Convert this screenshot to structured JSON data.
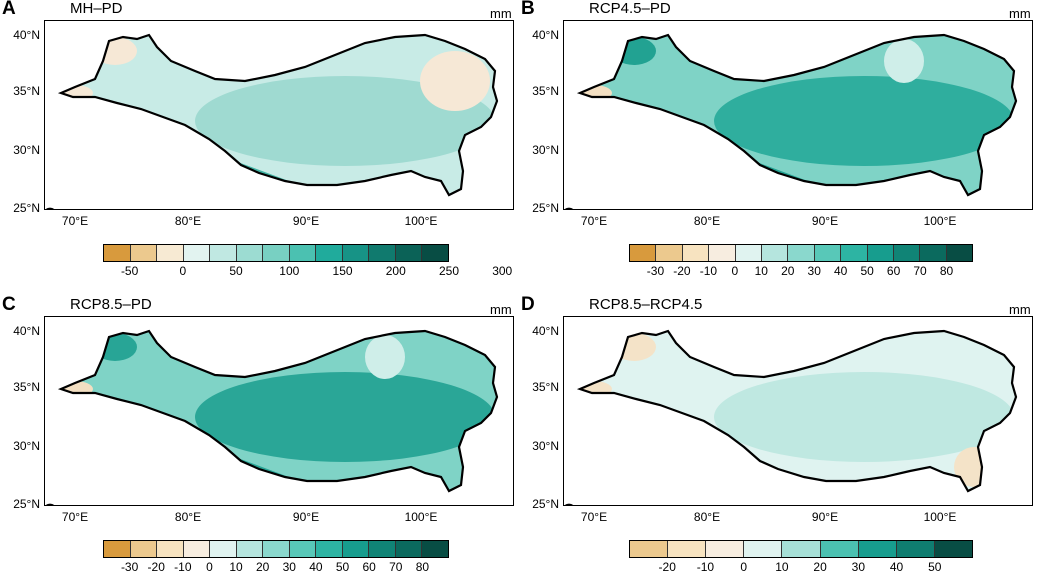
{
  "unit": "mm",
  "lat_labels": [
    "40°N",
    "35°N",
    "30°N",
    "25°N"
  ],
  "lon_labels": [
    "70°E",
    "80°E",
    "90°E",
    "100°E"
  ],
  "panels": [
    {
      "label": "A",
      "title": "MH–PD",
      "unit": "mm",
      "colorbar": {
        "ticks": [
          "-50",
          "0",
          "50",
          "100",
          "150",
          "200",
          "250",
          "300"
        ],
        "colors": [
          "#d89a3d",
          "#ecc98e",
          "#f7ead3",
          "#e2f3f0",
          "#c0e8e2",
          "#9cdcd2",
          "#78d0c2",
          "#4bc1b1",
          "#20ab9c",
          "#179386",
          "#107a6e",
          "#0b6257",
          "#084d44"
        ]
      }
    },
    {
      "label": "B",
      "title": "RCP4.5–PD",
      "unit": "mm",
      "colorbar": {
        "ticks": [
          "-30",
          "-20",
          "-10",
          "0",
          "10",
          "20",
          "30",
          "40",
          "50",
          "60",
          "70",
          "80"
        ],
        "colors": [
          "#d89a3d",
          "#ecc98e",
          "#f7e3c0",
          "#f7ede0",
          "#e0f3f0",
          "#b5e5de",
          "#8ad8cd",
          "#58c8b8",
          "#2db4a3",
          "#179d8e",
          "#108476",
          "#0b6a5e",
          "#084d44"
        ]
      }
    },
    {
      "label": "C",
      "title": "RCP8.5–PD",
      "unit": "mm",
      "colorbar": {
        "ticks": [
          "-30",
          "-20",
          "-10",
          "0",
          "10",
          "20",
          "30",
          "40",
          "50",
          "60",
          "70",
          "80"
        ],
        "colors": [
          "#d89a3d",
          "#ecc98e",
          "#f7e3c0",
          "#f7ede0",
          "#e0f3f0",
          "#b5e5de",
          "#8ad8cd",
          "#58c8b8",
          "#2db4a3",
          "#179d8e",
          "#108476",
          "#0b6a5e",
          "#084d44"
        ]
      }
    },
    {
      "label": "D",
      "title": "RCP8.5–RCP4.5",
      "unit": "mm",
      "colorbar": {
        "ticks": [
          "-20",
          "-10",
          "0",
          "10",
          "20",
          "30",
          "40",
          "50"
        ],
        "colors": [
          "#ecc98e",
          "#f7e3c0",
          "#f7ede0",
          "#e0f3f0",
          "#a6e0d7",
          "#4bc1b1",
          "#179d8e",
          "#0f7d70",
          "#084d44"
        ]
      }
    }
  ],
  "map_fills": {
    "A": {
      "base": "#c8ebe6",
      "mid": "#9fdad1",
      "south": "#3fb3a3",
      "edge": "#0d5a51",
      "warm": "#f6e8d6"
    },
    "B": {
      "base": "#7fd3c6",
      "mid": "#2fae9e",
      "south": "#22a292",
      "edge": "#0f6f64",
      "warm": "#f3dfc2"
    },
    "C": {
      "base": "#7fd3c6",
      "mid": "#2aa697",
      "south": "#28a596",
      "edge": "#0f6f64",
      "warm": "#f3dfc2"
    },
    "D": {
      "base": "#dff3f0",
      "mid": "#bfe8e1",
      "south": "#dff3f0",
      "edge": "#f1dcbc",
      "warm": "#f4e3c8"
    }
  }
}
